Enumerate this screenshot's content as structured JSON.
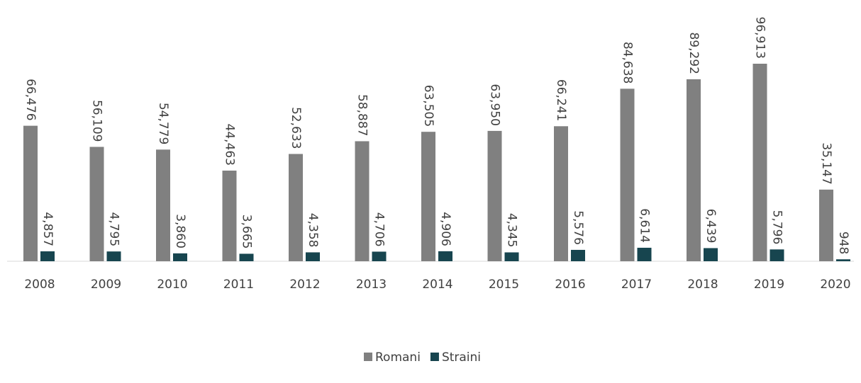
{
  "chart_data": {
    "type": "bar",
    "categories": [
      "2008",
      "2009",
      "2010",
      "2011",
      "2012",
      "2013",
      "2014",
      "2015",
      "2016",
      "2017",
      "2018",
      "2019",
      "2020"
    ],
    "series": [
      {
        "name": "Romani",
        "color": "#808080",
        "values": [
          66476,
          56109,
          54779,
          44463,
          52633,
          58887,
          63505,
          63950,
          66241,
          84638,
          89292,
          96913,
          35147
        ],
        "value_labels": [
          "66,476",
          "56,109",
          "54,779",
          "44,463",
          "52,633",
          "58,887",
          "63,505",
          "63,950",
          "66,241",
          "84,638",
          "89,292",
          "96,913",
          "35,147"
        ]
      },
      {
        "name": "Straini",
        "color": "#17454f",
        "values": [
          4857,
          4795,
          3860,
          3665,
          4358,
          4706,
          4906,
          4345,
          5576,
          6614,
          6439,
          5796,
          948
        ],
        "value_labels": [
          "4,857",
          "4,795",
          "3,860",
          "3,665",
          "4,358",
          "4,706",
          "4,906",
          "4,345",
          "5,576",
          "6,614",
          "6,439",
          "5,796",
          "948"
        ]
      }
    ],
    "legend": "bottom"
  }
}
